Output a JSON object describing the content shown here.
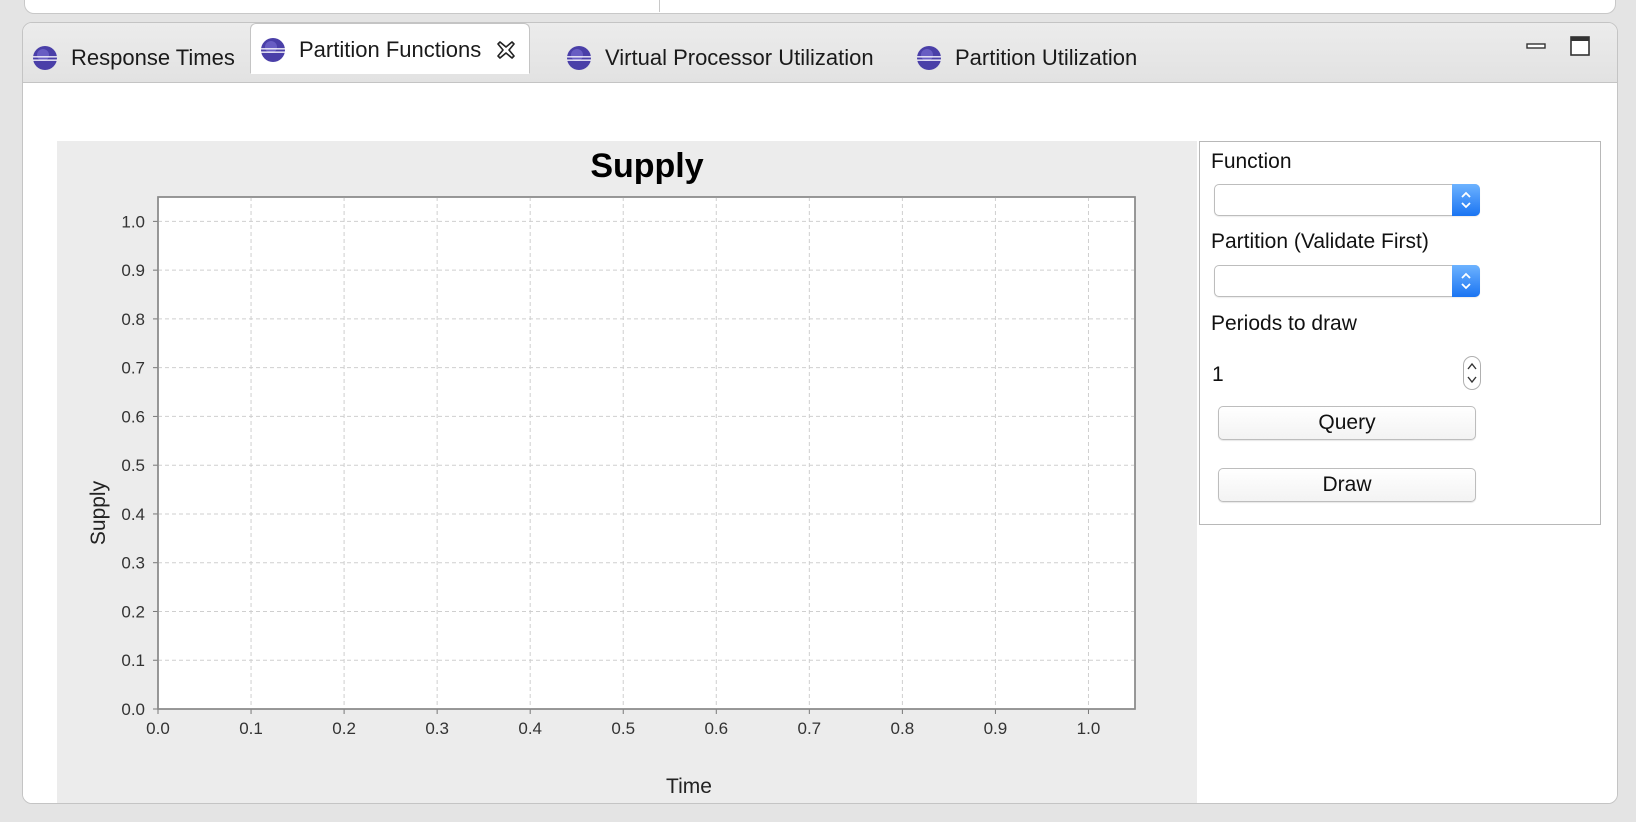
{
  "tabs": [
    {
      "label": "Response Times",
      "active": false
    },
    {
      "label": "Partition Functions",
      "active": true
    },
    {
      "label": "Virtual Processor Utilization",
      "active": false
    },
    {
      "label": "Partition Utilization",
      "active": false
    }
  ],
  "controls": {
    "function_label": "Function",
    "function_value": "",
    "partition_label": "Partition (Validate First)",
    "partition_value": "",
    "periods_label": "Periods to draw",
    "periods_value": "1",
    "query_label": "Query",
    "draw_label": "Draw"
  },
  "colors": {
    "tab_icon": "#4a3fa8",
    "combo_accent": "#2a7ff5",
    "chart_background": "#ececec",
    "plot_background": "#ffffff",
    "grid": "#cfcfcf"
  },
  "chart_data": {
    "type": "line",
    "title": "Supply",
    "xlabel": "Time",
    "ylabel": "Supply",
    "xlim": [
      0.0,
      1.05
    ],
    "ylim": [
      0.0,
      1.05
    ],
    "xticks": [
      "0.0",
      "0.1",
      "0.2",
      "0.3",
      "0.4",
      "0.5",
      "0.6",
      "0.7",
      "0.8",
      "0.9",
      "1.0"
    ],
    "yticks": [
      "0.0",
      "0.1",
      "0.2",
      "0.3",
      "0.4",
      "0.5",
      "0.6",
      "0.7",
      "0.8",
      "0.9",
      "1.0"
    ],
    "grid": true,
    "series": []
  }
}
